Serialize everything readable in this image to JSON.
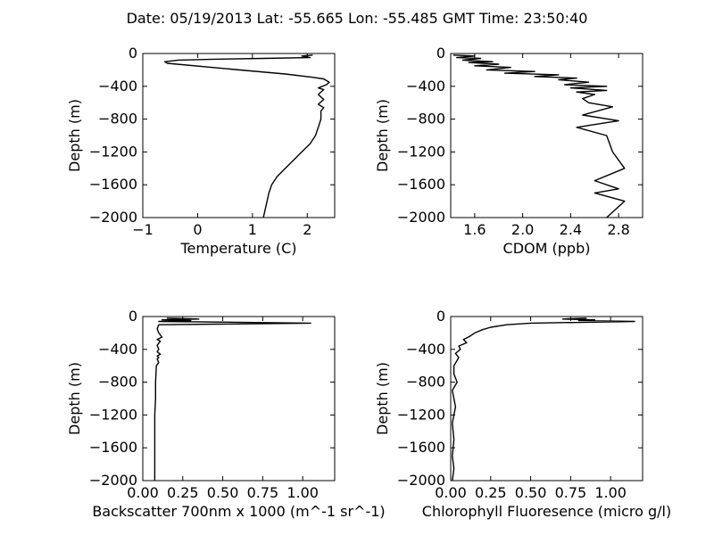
{
  "figure_title": "Date: 05/19/2013  Lat:  -55.665 Lon:  -55.485  GMT Time: 23:50:40",
  "chart_data": [
    {
      "id": "temperature",
      "type": "line",
      "title": "",
      "xlabel": "Temperature (C)",
      "ylabel": "Depth (m)",
      "xlim": [
        -1,
        2.5
      ],
      "ylim": [
        -2000,
        0
      ],
      "xticks": [
        "−1",
        "0",
        "1",
        "2"
      ],
      "xtick_values": [
        -1,
        0,
        1,
        2
      ],
      "yticks": [
        "0",
        "−400",
        "−800",
        "−1200",
        "−1600",
        "−2000"
      ],
      "ytick_values": [
        0,
        -400,
        -800,
        -1200,
        -1600,
        -2000
      ],
      "series": [
        {
          "x": [
            2.1,
            1.9,
            2.05,
            1.2,
            0.3,
            -0.35,
            -0.6,
            -0.55,
            0.6,
            1.6,
            2.1,
            2.3,
            2.4,
            2.35,
            2.2,
            2.3,
            2.2,
            2.3,
            2.2,
            2.3,
            2.25,
            2.25,
            2.2,
            2.15,
            2.05,
            1.9,
            1.75,
            1.6,
            1.45,
            1.35,
            1.3,
            1.25,
            1.2
          ],
          "y": [
            -20,
            -30,
            -50,
            -60,
            -70,
            -80,
            -100,
            -120,
            -190,
            -250,
            -290,
            -310,
            -350,
            -380,
            -420,
            -440,
            -500,
            -560,
            -620,
            -660,
            -700,
            -800,
            -900,
            -1000,
            -1100,
            -1200,
            -1300,
            -1400,
            -1500,
            -1600,
            -1700,
            -1850,
            -2000
          ]
        }
      ]
    },
    {
      "id": "cdom",
      "type": "line",
      "title": "",
      "xlabel": "CDOM (ppb)",
      "ylabel": "Depth (m)",
      "xlim": [
        1.4,
        3.0
      ],
      "ylim": [
        -2000,
        0
      ],
      "xticks": [
        "1.6",
        "2.0",
        "2.4",
        "2.8"
      ],
      "xtick_values": [
        1.6,
        2.0,
        2.4,
        2.8
      ],
      "yticks": [
        "0",
        "−400",
        "−800",
        "−1200",
        "−1600",
        "−2000"
      ],
      "ytick_values": [
        0,
        -400,
        -800,
        -1200,
        -1600,
        -2000
      ],
      "series": [
        {
          "x": [
            1.42,
            1.6,
            1.45,
            1.65,
            1.5,
            1.75,
            1.55,
            1.8,
            1.6,
            1.9,
            1.7,
            2.1,
            1.85,
            2.3,
            2.1,
            2.45,
            2.3,
            2.55,
            2.35,
            2.7,
            2.4,
            2.7,
            2.45,
            2.6,
            2.5,
            2.55,
            2.75,
            2.5,
            2.8,
            2.45,
            2.7,
            2.75,
            2.85,
            2.6,
            2.8,
            2.6,
            2.85,
            2.7
          ],
          "y": [
            -20,
            -30,
            -50,
            -60,
            -80,
            -100,
            -110,
            -130,
            -150,
            -170,
            -200,
            -220,
            -240,
            -260,
            -280,
            -300,
            -320,
            -350,
            -380,
            -400,
            -420,
            -450,
            -470,
            -500,
            -550,
            -600,
            -650,
            -750,
            -820,
            -900,
            -1000,
            -1200,
            -1400,
            -1550,
            -1650,
            -1700,
            -1800,
            -2000
          ]
        }
      ]
    },
    {
      "id": "backscatter",
      "type": "line",
      "title": "",
      "xlabel": "Backscatter 700nm x 1000 (m^-1 sr^-1)",
      "ylabel": "Depth (m)",
      "xlim": [
        0.0,
        1.2
      ],
      "ylim": [
        -2000,
        0
      ],
      "xticks": [
        "0.00",
        "0.25",
        "0.50",
        "0.75",
        "1.00"
      ],
      "xtick_values": [
        0.0,
        0.25,
        0.5,
        0.75,
        1.0
      ],
      "yticks": [
        "0",
        "−400",
        "−800",
        "−1200",
        "−1600",
        "−2000"
      ],
      "ytick_values": [
        0,
        -400,
        -800,
        -1200,
        -1600,
        -2000
      ],
      "series": [
        {
          "x": [
            0.15,
            0.35,
            0.12,
            0.3,
            0.1,
            1.05,
            0.1,
            0.09,
            0.1,
            0.12,
            0.09,
            0.11,
            0.09,
            0.1,
            0.09,
            0.11,
            0.09,
            0.1,
            0.09,
            0.1,
            0.085,
            0.08,
            0.08,
            0.075,
            0.075,
            0.075,
            0.075
          ],
          "y": [
            -20,
            -30,
            -40,
            -50,
            -60,
            -80,
            -100,
            -150,
            -200,
            -250,
            -280,
            -300,
            -350,
            -400,
            -430,
            -460,
            -480,
            -500,
            -520,
            -560,
            -600,
            -800,
            -1000,
            -1200,
            -1400,
            -1700,
            -2000
          ]
        }
      ]
    },
    {
      "id": "chlorophyll",
      "type": "line",
      "title": "",
      "xlabel": "Chlorophyll Fluoresence (micro g/l)",
      "ylabel": "Depth (m)",
      "xlim": [
        0.0,
        1.2
      ],
      "ylim": [
        -2000,
        0
      ],
      "xticks": [
        "0.00",
        "0.25",
        "0.50",
        "0.75",
        "1.00"
      ],
      "xtick_values": [
        0.0,
        0.25,
        0.5,
        0.75,
        1.0
      ],
      "yticks": [
        "0",
        "−400",
        "−800",
        "−1200",
        "−1600",
        "−2000"
      ],
      "ytick_values": [
        0,
        -400,
        -800,
        -1200,
        -1600,
        -2000
      ],
      "series": [
        {
          "x": [
            0.85,
            0.7,
            0.9,
            0.8,
            1.15,
            0.5,
            0.35,
            0.25,
            0.2,
            0.15,
            0.12,
            0.08,
            0.1,
            0.05,
            0.06,
            0.03,
            0.05,
            0.02,
            0.02,
            0.04,
            0.01,
            0.03,
            0.01,
            0.02,
            0.01,
            0.02,
            0.01
          ],
          "y": [
            -20,
            -30,
            -40,
            -50,
            -60,
            -80,
            -100,
            -130,
            -160,
            -200,
            -240,
            -280,
            -320,
            -360,
            -400,
            -450,
            -500,
            -600,
            -700,
            -800,
            -900,
            -1100,
            -1300,
            -1500,
            -1700,
            -1850,
            -2000
          ]
        }
      ]
    }
  ]
}
